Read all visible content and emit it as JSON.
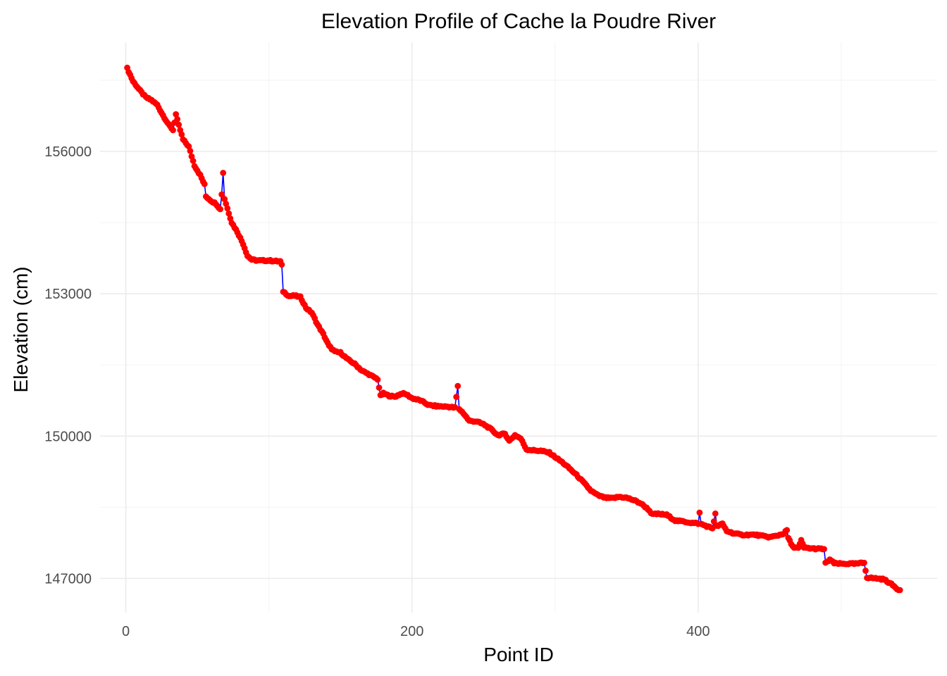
{
  "chart_data": {
    "type": "line",
    "title": "Elevation Profile of Cache la Poudre River",
    "xlabel": "Point ID",
    "ylabel": "Elevation (cm)",
    "xlim": [
      -18,
      567
    ],
    "ylim": [
      146280,
      158300
    ],
    "x_ticks": [
      0,
      200,
      400
    ],
    "x_tick_labels": [
      "0",
      "200",
      "400"
    ],
    "y_ticks": [
      147000,
      150000,
      153000,
      156000
    ],
    "y_tick_labels": [
      "147000",
      "150000",
      "153000",
      "156000"
    ],
    "grid": true,
    "legend": "none",
    "line_color": "#0000ff",
    "point_color": "#ff0000",
    "n_points": 541,
    "anchors": [
      [
        1,
        157750
      ],
      [
        5,
        157480
      ],
      [
        10,
        157280
      ],
      [
        14,
        157140
      ],
      [
        18,
        157080
      ],
      [
        22,
        156980
      ],
      [
        26,
        156760
      ],
      [
        30,
        156560
      ],
      [
        33,
        156450
      ],
      [
        35,
        156780
      ],
      [
        37,
        156550
      ],
      [
        40,
        156250
      ],
      [
        44,
        156100
      ],
      [
        48,
        155700
      ],
      [
        52,
        155500
      ],
      [
        55,
        155300
      ],
      [
        56,
        155050
      ],
      [
        60,
        154950
      ],
      [
        63,
        154900
      ],
      [
        66,
        154780
      ],
      [
        67,
        155100
      ],
      [
        68,
        155550
      ],
      [
        69,
        155000
      ],
      [
        71,
        154800
      ],
      [
        74,
        154500
      ],
      [
        78,
        154300
      ],
      [
        82,
        154050
      ],
      [
        85,
        153800
      ],
      [
        88,
        153720
      ],
      [
        92,
        153700
      ],
      [
        100,
        153700
      ],
      [
        108,
        153680
      ],
      [
        109,
        153600
      ],
      [
        110,
        153050
      ],
      [
        114,
        152950
      ],
      [
        118,
        152960
      ],
      [
        122,
        152930
      ],
      [
        126,
        152700
      ],
      [
        130,
        152600
      ],
      [
        134,
        152350
      ],
      [
        138,
        152150
      ],
      [
        142,
        151900
      ],
      [
        146,
        151780
      ],
      [
        150,
        151760
      ],
      [
        155,
        151620
      ],
      [
        160,
        151520
      ],
      [
        165,
        151380
      ],
      [
        170,
        151300
      ],
      [
        176,
        151200
      ],
      [
        178,
        150850
      ],
      [
        180,
        150900
      ],
      [
        184,
        150850
      ],
      [
        188,
        150830
      ],
      [
        193,
        150900
      ],
      [
        196,
        150880
      ],
      [
        200,
        150800
      ],
      [
        206,
        150750
      ],
      [
        212,
        150650
      ],
      [
        218,
        150630
      ],
      [
        225,
        150620
      ],
      [
        230,
        150600
      ],
      [
        232,
        151050
      ],
      [
        233,
        150570
      ],
      [
        236,
        150480
      ],
      [
        240,
        150320
      ],
      [
        245,
        150310
      ],
      [
        250,
        150250
      ],
      [
        255,
        150150
      ],
      [
        260,
        150020
      ],
      [
        265,
        150050
      ],
      [
        268,
        149900
      ],
      [
        272,
        150020
      ],
      [
        276,
        149950
      ],
      [
        280,
        149720
      ],
      [
        285,
        149700
      ],
      [
        290,
        149690
      ],
      [
        296,
        149650
      ],
      [
        300,
        149560
      ],
      [
        305,
        149450
      ],
      [
        310,
        149320
      ],
      [
        315,
        149180
      ],
      [
        320,
        149020
      ],
      [
        325,
        148850
      ],
      [
        330,
        148750
      ],
      [
        335,
        148700
      ],
      [
        340,
        148690
      ],
      [
        345,
        148720
      ],
      [
        350,
        148700
      ],
      [
        355,
        148650
      ],
      [
        360,
        148580
      ],
      [
        365,
        148460
      ],
      [
        368,
        148350
      ],
      [
        372,
        148360
      ],
      [
        378,
        148340
      ],
      [
        384,
        148220
      ],
      [
        390,
        148200
      ],
      [
        396,
        148170
      ],
      [
        400,
        148160
      ],
      [
        401,
        148380
      ],
      [
        402,
        148150
      ],
      [
        406,
        148100
      ],
      [
        410,
        148060
      ],
      [
        412,
        148360
      ],
      [
        413,
        148100
      ],
      [
        417,
        148150
      ],
      [
        420,
        148000
      ],
      [
        425,
        147950
      ],
      [
        430,
        147920
      ],
      [
        440,
        147920
      ],
      [
        450,
        147870
      ],
      [
        455,
        147900
      ],
      [
        460,
        147950
      ],
      [
        462,
        148020
      ],
      [
        463,
        147850
      ],
      [
        466,
        147670
      ],
      [
        470,
        147640
      ],
      [
        472,
        147800
      ],
      [
        474,
        147650
      ],
      [
        480,
        147630
      ],
      [
        488,
        147620
      ],
      [
        489,
        147320
      ],
      [
        492,
        147400
      ],
      [
        495,
        147320
      ],
      [
        500,
        147310
      ],
      [
        510,
        147310
      ],
      [
        516,
        147330
      ],
      [
        518,
        147020
      ],
      [
        525,
        147000
      ],
      [
        530,
        146980
      ],
      [
        535,
        146880
      ],
      [
        540,
        146760
      ]
    ]
  }
}
